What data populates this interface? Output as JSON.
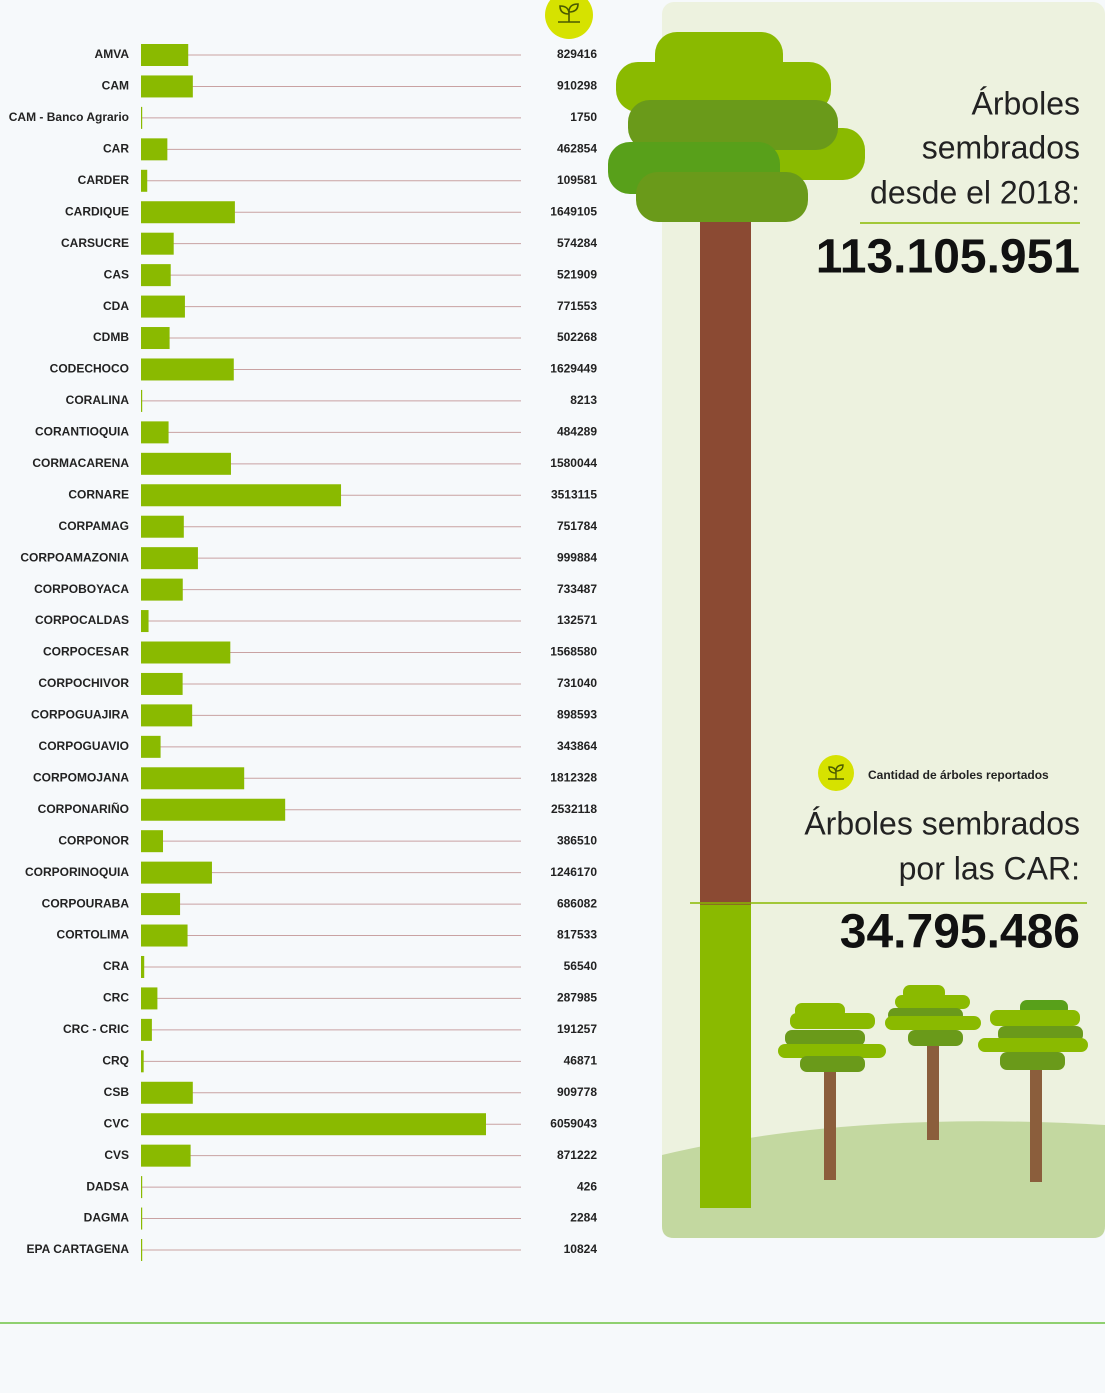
{
  "chart_data": {
    "type": "bar",
    "orientation": "horizontal",
    "color": "#8aba00",
    "categories": [
      "AMVA",
      "CAM",
      "CAM - Banco Agrario",
      "CAR",
      "CARDER",
      "CARDIQUE",
      "CARSUCRE",
      "CAS",
      "CDA",
      "CDMB",
      "CODECHOCO",
      "CORALINA",
      "CORANTIOQUIA",
      "CORMACARENA",
      "CORNARE",
      "CORPAMAG",
      "CORPOAMAZONIA",
      "CORPOBOYACA",
      "CORPOCALDAS",
      "CORPOCESAR",
      "CORPOCHIVOR",
      "CORPOGUAJIRA",
      "CORPOGUAVIO",
      "CORPOMOJANA",
      "CORPONARIÑO",
      "CORPONOR",
      "CORPORINOQUIA",
      "CORPOURABA",
      "CORTOLIMA",
      "CRA",
      "CRC",
      "CRC - CRIC",
      "CRQ",
      "CSB",
      "CVC",
      "CVS",
      "DADSA",
      "DAGMA",
      "EPA CARTAGENA"
    ],
    "values": [
      829416,
      910298,
      1750,
      462854,
      109581,
      1649105,
      574284,
      521909,
      771553,
      502268,
      1629449,
      8213,
      484289,
      1580044,
      3513115,
      751784,
      999884,
      733487,
      132571,
      1568580,
      731040,
      898593,
      343864,
      1812328,
      2532118,
      386510,
      1246170,
      686082,
      817533,
      56540,
      287985,
      191257,
      46871,
      909778,
      6059043,
      871222,
      426,
      2284,
      10824
    ]
  },
  "panel": {
    "total_title": [
      "Árboles",
      "sembrados",
      "desde el 2018:"
    ],
    "total": {
      "value": 113105951,
      "label": "113.105.951"
    },
    "legend_label": "Cantidad de árboles reportados",
    "car_title": [
      "Árboles sembrados",
      "por las CAR:"
    ],
    "car_total": {
      "value": 34795486,
      "label": "34.795.486"
    }
  }
}
